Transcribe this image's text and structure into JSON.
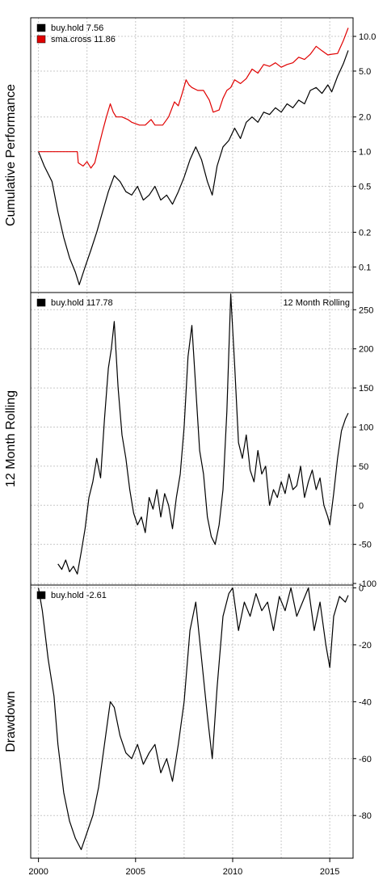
{
  "chart_data": [
    {
      "type": "line",
      "ylabel": "Cumulative Performance",
      "log_scale": true,
      "ylim": [
        0.06,
        14.5
      ],
      "xlim": [
        1999.6,
        2016.2
      ],
      "yticks": [
        0.1,
        0.2,
        0.5,
        1.0,
        2.0,
        5.0,
        10.0
      ],
      "ytick_labels": [
        "0.1",
        "0.2",
        "0.5",
        "1.0",
        "2.0",
        "5.0",
        "10.0"
      ],
      "grid": true,
      "legend_position": "top-left",
      "series": [
        {
          "name": "buy.hold",
          "final_label": "7.56",
          "color": "#000000",
          "x": [
            2000.0,
            2000.3,
            2000.7,
            2001.0,
            2001.3,
            2001.6,
            2001.9,
            2002.1,
            2002.4,
            2002.7,
            2003.0,
            2003.3,
            2003.6,
            2003.9,
            2004.2,
            2004.5,
            2004.8,
            2005.1,
            2005.4,
            2005.7,
            2006.0,
            2006.3,
            2006.6,
            2006.9,
            2007.2,
            2007.5,
            2007.8,
            2008.1,
            2008.4,
            2008.7,
            2008.95,
            2009.2,
            2009.5,
            2009.8,
            2010.1,
            2010.4,
            2010.7,
            2011.0,
            2011.3,
            2011.6,
            2011.9,
            2012.2,
            2012.5,
            2012.8,
            2013.1,
            2013.4,
            2013.7,
            2014.0,
            2014.3,
            2014.6,
            2014.9,
            2015.1,
            2015.4,
            2015.7,
            2015.95
          ],
          "values": [
            1.0,
            0.75,
            0.55,
            0.3,
            0.18,
            0.12,
            0.09,
            0.07,
            0.1,
            0.14,
            0.2,
            0.3,
            0.45,
            0.62,
            0.55,
            0.45,
            0.42,
            0.5,
            0.38,
            0.42,
            0.5,
            0.38,
            0.42,
            0.35,
            0.45,
            0.6,
            0.85,
            1.1,
            0.85,
            0.55,
            0.42,
            0.75,
            1.1,
            1.25,
            1.6,
            1.3,
            1.8,
            2.0,
            1.8,
            2.2,
            2.1,
            2.4,
            2.2,
            2.6,
            2.4,
            2.8,
            2.6,
            3.4,
            3.6,
            3.2,
            3.8,
            3.3,
            4.5,
            5.8,
            7.56
          ]
        },
        {
          "name": "sma.cross",
          "final_label": "11.86",
          "color": "#e00000",
          "x": [
            2000.0,
            2002.0,
            2002.05,
            2002.3,
            2002.5,
            2002.7,
            2002.9,
            2003.1,
            2003.3,
            2003.5,
            2003.7,
            2003.85,
            2004.0,
            2004.3,
            2004.6,
            2004.8,
            2005.2,
            2005.5,
            2005.8,
            2006.0,
            2006.4,
            2006.7,
            2007.0,
            2007.2,
            2007.4,
            2007.6,
            2007.75,
            2007.9,
            2008.2,
            2008.5,
            2008.8,
            2009.0,
            2009.3,
            2009.5,
            2009.7,
            2009.9,
            2010.1,
            2010.4,
            2010.7,
            2011.0,
            2011.3,
            2011.6,
            2011.9,
            2012.2,
            2012.5,
            2012.8,
            2013.1,
            2013.4,
            2013.7,
            2014.0,
            2014.3,
            2014.6,
            2014.9,
            2015.1,
            2015.4,
            2015.7,
            2015.95
          ],
          "values": [
            1.0,
            1.0,
            0.8,
            0.75,
            0.82,
            0.72,
            0.8,
            1.1,
            1.5,
            2.0,
            2.6,
            2.2,
            2.0,
            2.0,
            1.9,
            1.8,
            1.7,
            1.7,
            1.9,
            1.7,
            1.7,
            2.0,
            2.7,
            2.5,
            3.2,
            4.2,
            3.8,
            3.6,
            3.4,
            3.4,
            2.8,
            2.2,
            2.3,
            2.9,
            3.4,
            3.6,
            4.2,
            3.9,
            4.3,
            5.2,
            4.8,
            5.7,
            5.5,
            5.9,
            5.4,
            5.7,
            5.9,
            6.6,
            6.3,
            7.0,
            8.2,
            7.5,
            6.9,
            7.0,
            7.1,
            9.2,
            11.86
          ]
        }
      ]
    },
    {
      "type": "line",
      "ylabel": "12 Month Rolling",
      "annotation": "12 Month Rolling",
      "ylim": [
        -102,
        272
      ],
      "xlim": [
        1999.6,
        2016.2
      ],
      "yticks": [
        -100,
        -50,
        0,
        50,
        100,
        150,
        200,
        250
      ],
      "ytick_labels": [
        "-100",
        "-50",
        "0",
        "50",
        "100",
        "150",
        "200",
        "250"
      ],
      "grid": true,
      "legend_position": "top-left",
      "series": [
        {
          "name": "buy.hold",
          "final_label": "117.78",
          "color": "#000000",
          "x": [
            2001.0,
            2001.2,
            2001.4,
            2001.6,
            2001.8,
            2002.0,
            2002.2,
            2002.4,
            2002.6,
            2002.8,
            2003.0,
            2003.2,
            2003.4,
            2003.6,
            2003.75,
            2003.9,
            2004.1,
            2004.3,
            2004.5,
            2004.7,
            2004.9,
            2005.1,
            2005.3,
            2005.5,
            2005.7,
            2005.9,
            2006.1,
            2006.3,
            2006.5,
            2006.7,
            2006.9,
            2007.1,
            2007.3,
            2007.5,
            2007.7,
            2007.9,
            2008.1,
            2008.3,
            2008.5,
            2008.7,
            2008.9,
            2009.1,
            2009.3,
            2009.5,
            2009.7,
            2009.9,
            2010.1,
            2010.3,
            2010.5,
            2010.7,
            2010.9,
            2011.1,
            2011.3,
            2011.5,
            2011.7,
            2011.9,
            2012.1,
            2012.3,
            2012.5,
            2012.7,
            2012.9,
            2013.1,
            2013.3,
            2013.5,
            2013.7,
            2013.9,
            2014.1,
            2014.3,
            2014.5,
            2014.7,
            2014.9,
            2015.0,
            2015.2,
            2015.4,
            2015.6,
            2015.8,
            2015.95
          ],
          "values": [
            -75,
            -82,
            -70,
            -85,
            -78,
            -88,
            -60,
            -30,
            10,
            30,
            60,
            35,
            110,
            175,
            200,
            235,
            150,
            90,
            60,
            20,
            -10,
            -25,
            -15,
            -35,
            10,
            -5,
            20,
            -15,
            15,
            0,
            -30,
            10,
            40,
            100,
            190,
            230,
            150,
            70,
            40,
            -15,
            -40,
            -50,
            -25,
            20,
            120,
            270,
            180,
            80,
            60,
            90,
            45,
            30,
            70,
            40,
            50,
            0,
            20,
            10,
            30,
            15,
            40,
            20,
            25,
            50,
            10,
            30,
            45,
            20,
            35,
            0,
            -15,
            -25,
            15,
            60,
            95,
            110,
            117.78
          ]
        }
      ]
    },
    {
      "type": "line",
      "ylabel": "Drawdown",
      "ylim": [
        -95,
        1
      ],
      "xlim": [
        1999.6,
        2016.2
      ],
      "xticks": [
        2000,
        2005,
        2010,
        2015
      ],
      "xtick_labels": [
        "2000",
        "2005",
        "2010",
        "2015"
      ],
      "yticks": [
        -80,
        -60,
        -40,
        -20,
        0
      ],
      "ytick_labels": [
        "-80",
        "-60",
        "-40",
        "-20",
        "0"
      ],
      "grid": true,
      "legend_position": "top-left",
      "series": [
        {
          "name": "buy.hold",
          "final_label": "-2.61",
          "color": "#000000",
          "x": [
            2000.0,
            2000.2,
            2000.5,
            2000.8,
            2001.0,
            2001.3,
            2001.6,
            2001.9,
            2002.2,
            2002.5,
            2002.8,
            2003.1,
            2003.4,
            2003.7,
            2003.9,
            2004.2,
            2004.5,
            2004.8,
            2005.1,
            2005.4,
            2005.7,
            2006.0,
            2006.3,
            2006.6,
            2006.9,
            2007.2,
            2007.5,
            2007.8,
            2008.1,
            2008.4,
            2008.7,
            2008.95,
            2009.2,
            2009.5,
            2009.8,
            2010.0,
            2010.3,
            2010.6,
            2010.9,
            2011.2,
            2011.5,
            2011.8,
            2012.1,
            2012.4,
            2012.7,
            2013.0,
            2013.3,
            2013.6,
            2013.9,
            2014.2,
            2014.5,
            2014.8,
            2015.0,
            2015.2,
            2015.5,
            2015.8,
            2015.95
          ],
          "values": [
            0,
            -8,
            -25,
            -38,
            -55,
            -72,
            -82,
            -88,
            -92,
            -86,
            -80,
            -70,
            -55,
            -40,
            -42,
            -52,
            -58,
            -60,
            -55,
            -62,
            -58,
            -55,
            -65,
            -60,
            -68,
            -55,
            -40,
            -15,
            -5,
            -25,
            -45,
            -60,
            -35,
            -10,
            -2,
            0,
            -15,
            -5,
            -10,
            -2,
            -8,
            -5,
            -15,
            -3,
            -8,
            0,
            -10,
            -5,
            0,
            -15,
            -5,
            -20,
            -28,
            -10,
            -3,
            -5,
            -2.61
          ]
        }
      ]
    }
  ]
}
